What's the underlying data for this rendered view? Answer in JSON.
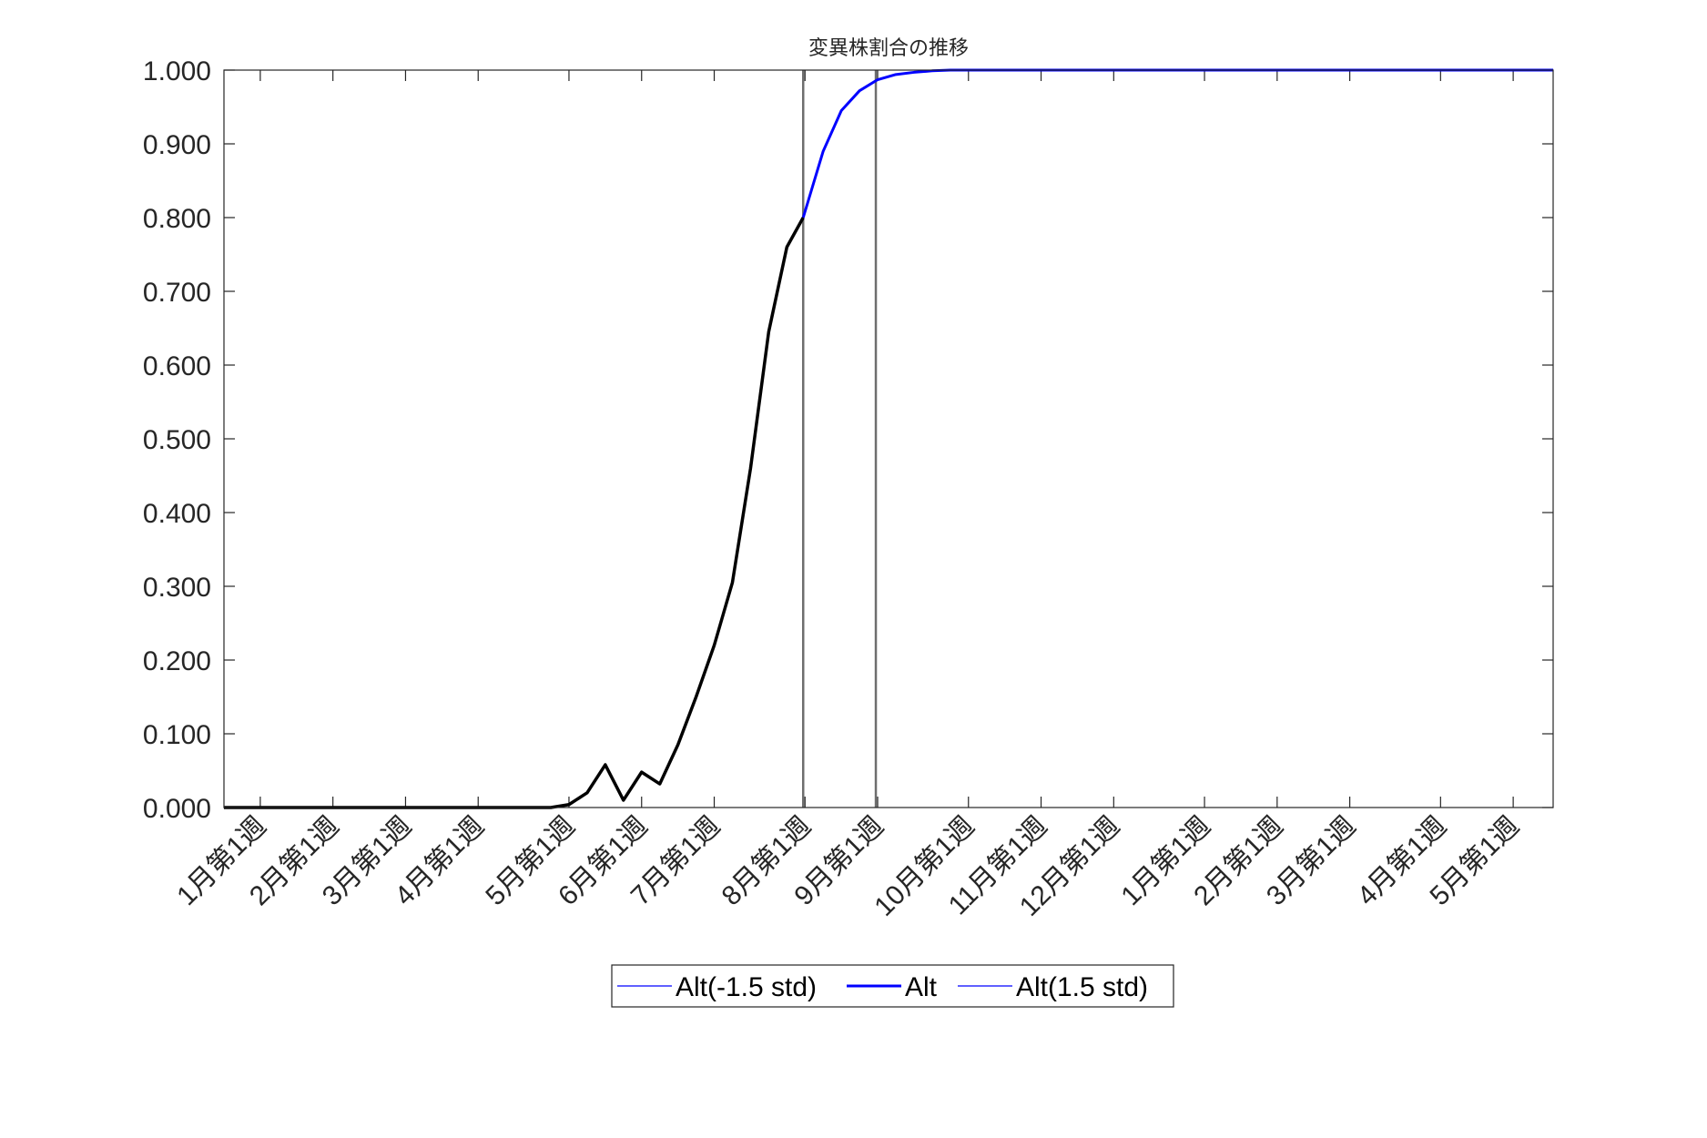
{
  "chart_data": {
    "type": "line",
    "title": "変異株割合の推移",
    "xlabel": "",
    "ylabel": "",
    "ylim": [
      0,
      1
    ],
    "grid": false,
    "legend_placement": "bottom-center",
    "x_unit": "week index (0 = 1月第1週, year 1)",
    "xlim": [
      -2,
      71.2
    ],
    "xticks": [
      {
        "week": 0,
        "label": "1月第1週"
      },
      {
        "week": 4,
        "label": "2月第1週"
      },
      {
        "week": 8,
        "label": "3月第1週"
      },
      {
        "week": 12,
        "label": "4月第1週"
      },
      {
        "week": 17,
        "label": "5月第1週"
      },
      {
        "week": 21,
        "label": "6月第1週"
      },
      {
        "week": 25,
        "label": "7月第1週"
      },
      {
        "week": 30,
        "label": "8月第1週"
      },
      {
        "week": 34,
        "label": "9月第1週"
      },
      {
        "week": 39,
        "label": "10月第1週"
      },
      {
        "week": 43,
        "label": "11月第1週"
      },
      {
        "week": 47,
        "label": "12月第1週"
      },
      {
        "week": 52,
        "label": "1月第1週"
      },
      {
        "week": 56,
        "label": "2月第1週"
      },
      {
        "week": 60,
        "label": "3月第1週"
      },
      {
        "week": 65,
        "label": "4月第1週"
      },
      {
        "week": 69,
        "label": "5月第1週"
      }
    ],
    "yticks": [
      {
        "value": 0.0,
        "label": "0.000"
      },
      {
        "value": 0.1,
        "label": "0.100"
      },
      {
        "value": 0.2,
        "label": "0.200"
      },
      {
        "value": 0.3,
        "label": "0.300"
      },
      {
        "value": 0.4,
        "label": "0.400"
      },
      {
        "value": 0.5,
        "label": "0.500"
      },
      {
        "value": 0.6,
        "label": "0.600"
      },
      {
        "value": 0.7,
        "label": "0.700"
      },
      {
        "value": 0.8,
        "label": "0.800"
      },
      {
        "value": 0.9,
        "label": "0.900"
      },
      {
        "value": 1.0,
        "label": "1.000"
      }
    ],
    "vertical_lines": [
      29.9,
      33.9
    ],
    "series": [
      {
        "name": "Alt(-1.5 std)",
        "color": "#0000ff",
        "x": [
          29.9,
          31,
          32,
          33,
          34,
          35,
          36,
          37,
          38,
          40,
          45,
          50,
          55,
          60,
          65,
          71.2
        ],
        "values": [
          0.8,
          0.89,
          0.945,
          0.972,
          0.987,
          0.994,
          0.997,
          0.999,
          1.0,
          1.0,
          1.0,
          1.0,
          1.0,
          1.0,
          1.0,
          1.0
        ]
      },
      {
        "name": "Alt",
        "color": "#0000ff",
        "x": [
          29.9,
          31,
          32,
          33,
          34,
          35,
          36,
          37,
          38,
          40,
          45,
          50,
          55,
          60,
          65,
          71.2
        ],
        "values": [
          0.8,
          0.89,
          0.945,
          0.972,
          0.987,
          0.994,
          0.997,
          0.999,
          1.0,
          1.0,
          1.0,
          1.0,
          1.0,
          1.0,
          1.0,
          1.0
        ]
      },
      {
        "name": "Alt(1.5 std)",
        "color": "#0000ff",
        "x": [
          29.9,
          31,
          32,
          33,
          34,
          35,
          36,
          37,
          38,
          40,
          45,
          50,
          55,
          60,
          65,
          71.2
        ],
        "values": [
          0.8,
          0.89,
          0.945,
          0.972,
          0.987,
          0.994,
          0.997,
          0.999,
          1.0,
          1.0,
          1.0,
          1.0,
          1.0,
          1.0,
          1.0,
          1.0
        ]
      },
      {
        "color": "#000000",
        "x": [
          -2,
          16,
          17,
          18,
          19,
          20,
          21,
          22,
          23,
          24,
          25,
          26,
          27,
          28,
          29,
          29.9
        ],
        "values": [
          0.0,
          0.0,
          0.004,
          0.02,
          0.058,
          0.01,
          0.048,
          0.032,
          0.085,
          0.15,
          0.22,
          0.305,
          0.46,
          0.645,
          0.76,
          0.8
        ]
      }
    ]
  }
}
